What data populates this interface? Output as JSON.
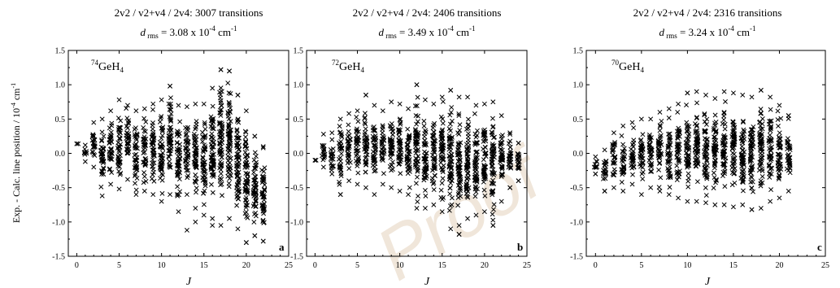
{
  "watermark": "Proof",
  "chart_data": [
    {
      "type": "scatter",
      "panel_letter": "a",
      "title_bands": "2v2 / v2+v4 / 2v4",
      "title_count": "3007 transitions",
      "rms_value": "3.08 x 10",
      "rms_exp": "-4",
      "rms_unit": "cm",
      "rms_unit_exp": "-1",
      "isotope_mass": "74",
      "molecule": "GeH",
      "molecule_sub": "4",
      "xlabel": "J",
      "ylabel": "Exp. - Calc. line position / 10",
      "ylabel_exp": "-4",
      "ylabel_unit": " cm",
      "ylabel_unit_exp": "-1",
      "xlim": [
        -1,
        25
      ],
      "ylim": [
        -1.5,
        1.5
      ],
      "xticks": [
        "0",
        "5",
        "10",
        "15",
        "20",
        "25"
      ],
      "yticks": [
        "-1.5",
        "-1.0",
        "-0.5",
        "0.0",
        "0.5",
        "1.0",
        "1.5"
      ],
      "grid": false,
      "marker": "x",
      "series": [
        {
          "x": [
            0,
            1,
            2,
            3,
            4,
            5,
            6,
            7,
            8,
            9,
            10,
            11,
            12,
            13,
            14,
            15,
            16,
            17,
            18,
            19,
            20,
            21,
            22
          ],
          "y_min": [
            0.14,
            -0.12,
            -0.2,
            -0.62,
            -0.45,
            -0.52,
            -0.38,
            -0.6,
            -0.55,
            -0.6,
            -0.7,
            -0.6,
            -0.85,
            -0.6,
            -0.8,
            -0.9,
            -0.95,
            -1.05,
            -0.95,
            -1.1,
            -1.3,
            -1.2,
            -1.28
          ],
          "y_max": [
            0.14,
            0.12,
            0.45,
            0.5,
            0.62,
            0.78,
            0.7,
            0.62,
            0.65,
            0.72,
            0.78,
            0.98,
            0.7,
            0.68,
            0.72,
            0.72,
            0.95,
            1.22,
            1.2,
            0.85,
            0.62,
            0.25,
            0.1
          ],
          "outliers": [
            [
              11,
              0.98
            ],
            [
              13,
              -1.12
            ],
            [
              17,
              1.22
            ],
            [
              18,
              1.2
            ],
            [
              19,
              0.85
            ],
            [
              20,
              -1.3
            ],
            [
              21,
              0.25
            ],
            [
              22,
              0.08
            ],
            [
              21,
              -1.2
            ],
            [
              22,
              -1.28
            ],
            [
              14,
              -1.0
            ],
            [
              16,
              -1.05
            ]
          ]
        }
      ]
    },
    {
      "type": "scatter",
      "panel_letter": "b",
      "title_bands": "2v2 / v2+v4 / 2v4",
      "title_count": "2406 transitions",
      "rms_value": "3.49 x 10",
      "rms_exp": "-4",
      "rms_unit": "cm",
      "rms_unit_exp": "-1",
      "isotope_mass": "72",
      "molecule": "GeH",
      "molecule_sub": "4",
      "xlabel": "J",
      "xlim": [
        -1,
        25
      ],
      "ylim": [
        -1.5,
        1.5
      ],
      "xticks": [
        "0",
        "5",
        "10",
        "15",
        "20",
        "25"
      ],
      "yticks": [
        "-1.5",
        "-1.0",
        "-0.5",
        "0.0",
        "0.5",
        "1.0",
        "1.5"
      ],
      "grid": false,
      "marker": "x",
      "series": [
        {
          "x": [
            0,
            1,
            2,
            3,
            4,
            5,
            6,
            7,
            8,
            9,
            10,
            11,
            12,
            13,
            14,
            15,
            16,
            17,
            18,
            19,
            20,
            21,
            22,
            23,
            24
          ],
          "y_min": [
            -0.1,
            -0.2,
            -0.3,
            -0.6,
            -0.4,
            -0.45,
            -0.5,
            -0.6,
            -0.45,
            -0.5,
            -0.55,
            -0.6,
            -0.8,
            -0.8,
            -0.75,
            -0.85,
            -1.1,
            -1.18,
            -0.95,
            -0.9,
            -0.85,
            -1.05,
            -0.7,
            -0.5,
            -0.4
          ],
          "y_max": [
            -0.1,
            0.28,
            0.3,
            0.5,
            0.58,
            0.62,
            0.85,
            0.7,
            0.62,
            0.75,
            0.72,
            0.65,
            1.0,
            0.78,
            0.72,
            0.82,
            0.92,
            0.82,
            0.82,
            0.7,
            0.72,
            0.75,
            0.55,
            0.3,
            0.15
          ],
          "outliers": [
            [
              12,
              1.0
            ],
            [
              16,
              0.92
            ],
            [
              17,
              -1.18
            ],
            [
              17,
              -1.05
            ],
            [
              21,
              -1.05
            ],
            [
              23,
              -0.5
            ],
            [
              24,
              -0.4
            ],
            [
              24,
              0.15
            ],
            [
              6,
              0.85
            ],
            [
              3,
              -0.6
            ]
          ]
        }
      ]
    },
    {
      "type": "scatter",
      "panel_letter": "c",
      "title_bands": "2v2 / v2+v4 / 2v4",
      "title_count": "2316 transitions",
      "rms_value": "3.24 x 10",
      "rms_exp": "-4",
      "rms_unit": "cm",
      "rms_unit_exp": "-1",
      "isotope_mass": "70",
      "molecule": "GeH",
      "molecule_sub": "4",
      "xlabel": "J",
      "xlim": [
        -1,
        25
      ],
      "ylim": [
        -1.5,
        1.5
      ],
      "xticks": [
        "0",
        "5",
        "10",
        "15",
        "20",
        "25"
      ],
      "yticks": [
        "-1.5",
        "-1.0",
        "-0.5",
        "0.0",
        "0.5",
        "1.0",
        "1.5"
      ],
      "grid": false,
      "marker": "x",
      "series": [
        {
          "x": [
            0,
            1,
            2,
            3,
            4,
            5,
            6,
            7,
            8,
            9,
            10,
            11,
            12,
            13,
            14,
            15,
            16,
            17,
            18,
            19,
            20,
            21
          ],
          "y_min": [
            -0.3,
            -0.55,
            -0.5,
            -0.55,
            -0.45,
            -0.6,
            -0.5,
            -0.55,
            -0.6,
            -0.65,
            -0.7,
            -0.7,
            -0.72,
            -0.75,
            -0.75,
            -0.78,
            -0.75,
            -0.82,
            -0.8,
            -0.7,
            -0.65,
            -0.55
          ],
          "y_max": [
            -0.05,
            0.05,
            0.3,
            0.4,
            0.45,
            0.5,
            0.5,
            0.6,
            0.65,
            0.72,
            0.88,
            0.9,
            0.85,
            0.8,
            0.9,
            0.88,
            0.85,
            0.82,
            0.92,
            0.82,
            0.7,
            0.55
          ],
          "outliers": [
            [
              0,
              -0.3
            ],
            [
              1,
              -0.55
            ],
            [
              10,
              0.88
            ],
            [
              18,
              0.92
            ],
            [
              17,
              -0.82
            ],
            [
              21,
              -0.25
            ],
            [
              21,
              0.55
            ]
          ]
        }
      ]
    }
  ]
}
